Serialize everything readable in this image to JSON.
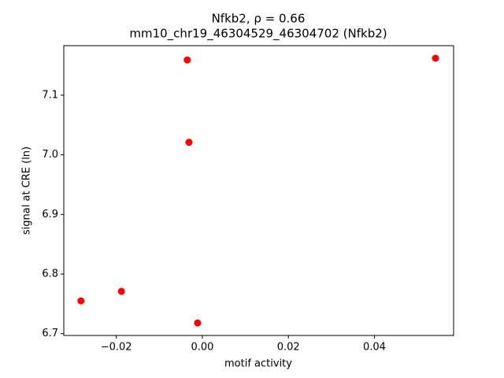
{
  "chart_data": {
    "type": "scatter",
    "title": "Nfkb2, ρ = 0.66",
    "subtitle": "mm10_chr19_46304529_46304702 (Nfkb2)",
    "x_label": "motif activity",
    "y_label": "signal at CRE (ln)",
    "series": [
      {
        "color": "#ff0000",
        "x": [
          -0.0282,
          -0.0188,
          -0.0035,
          -0.0031,
          -0.0011,
          0.0542
        ],
        "values": [
          6.755,
          6.771,
          7.159,
          7.021,
          6.718,
          7.162
        ]
      }
    ],
    "xlim": [
      -0.0322,
      0.0584
    ],
    "ylim": [
      6.697,
      7.183
    ],
    "xticks": [
      {
        "value": -0.02,
        "label": "−0.02"
      },
      {
        "value": 0,
        "label": "0.00"
      },
      0.02,
      0.04
    ],
    "yticks": [
      6.7,
      6.8,
      6.9,
      {
        "value": 7,
        "label": "7.0"
      },
      7.1
    ],
    "grid": false
  }
}
